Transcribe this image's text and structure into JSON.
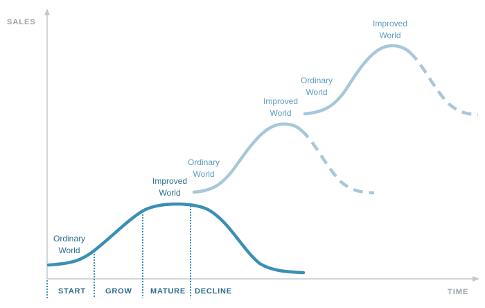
{
  "axes": {
    "y_label": "SALES",
    "x_label": "TIME"
  },
  "phases": [
    "START",
    "GROW",
    "MATURE",
    "DECLINE"
  ],
  "labels": [
    {
      "line1": "Ordinary",
      "line2": "World"
    },
    {
      "line1": "Improved",
      "line2": "World"
    },
    {
      "line1": "Ordinary",
      "line2": "World"
    },
    {
      "line1": "Improved",
      "line2": "World"
    },
    {
      "line1": "Ordinary",
      "line2": "World"
    },
    {
      "line1": "Improved",
      "line2": "World"
    }
  ],
  "colors": {
    "axis": "#c3c8cc",
    "axis_text": "#9aa1a6",
    "primary_curve": "#3a8fb5",
    "secondary_curve": "#a7c8da",
    "primary_text": "#2d6d8e",
    "secondary_text": "#5f9cc0"
  }
}
